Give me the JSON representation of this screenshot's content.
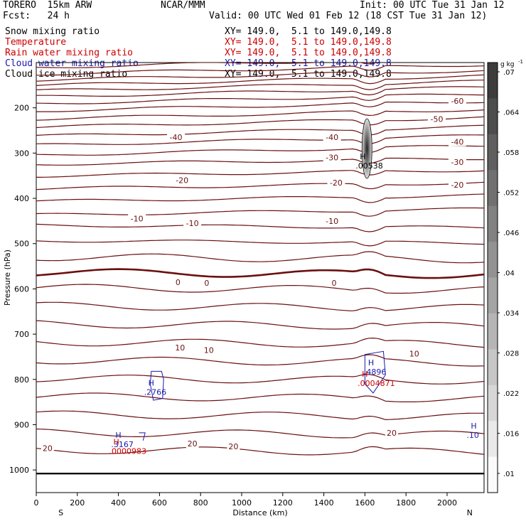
{
  "header": {
    "run": "TORERO  15km ARW",
    "center": "NCAR/MMM",
    "init": "Init: 00 UTC Tue 31 Jan 12",
    "fcst": "Fcst:   24 h",
    "valid": "Valid: 00 UTC Wed 01 Feb 12 (18 CST Tue 31 Jan 12)"
  },
  "fields": [
    {
      "name": "Snow mixing ratio",
      "xy": "XY= 149.0,  5.1 to 149.0,149.8",
      "color": "#000000"
    },
    {
      "name": "Temperature",
      "xy": "XY= 149.0,  5.1 to 149.0,149.8",
      "color": "#cc0000"
    },
    {
      "name": "Rain water mixing ratio",
      "xy": "XY= 149.0,  5.1 to 149.0,149.8",
      "color": "#cc0000"
    },
    {
      "name": "Cloud water mixing ratio",
      "xy": "XY= 149.0,  5.1 to 149.0,149.8",
      "color": "#1a1aaa"
    },
    {
      "name": "Cloud ice mixing ratio",
      "xy": "XY= 149.0,  5.1 to 149.0,149.8",
      "color": "#000000"
    }
  ],
  "chart_data": {
    "type": "cross-section contour",
    "xlabel": "Distance (km)",
    "ylabel": "Pressure (hPa)",
    "xlim": [
      0,
      2180
    ],
    "ylim": [
      1050,
      100
    ],
    "x_ticks": [
      0,
      200,
      400,
      600,
      800,
      1000,
      1200,
      1400,
      1600,
      1800,
      2000
    ],
    "y_ticks": [
      200,
      300,
      400,
      500,
      600,
      700,
      800,
      900,
      1000
    ],
    "end_labels": {
      "left": "S",
      "right": "N"
    },
    "colorbar": {
      "unit": "g kg",
      "unit_exp": "-1",
      "ticks": [
        ".01",
        ".016",
        ".022",
        ".028",
        ".034",
        ".04",
        ".046",
        ".052",
        ".058",
        ".064",
        ".07"
      ]
    },
    "temperature_labels": [
      {
        "text": "-60",
        "x": 2050,
        "p": 185
      },
      {
        "text": "-50",
        "x": 1950,
        "p": 225
      },
      {
        "text": "-40",
        "x": 680,
        "p": 265
      },
      {
        "text": "-40",
        "x": 1440,
        "p": 265
      },
      {
        "text": "-40",
        "x": 2050,
        "p": 275
      },
      {
        "text": "-30",
        "x": 1440,
        "p": 310
      },
      {
        "text": "-30",
        "x": 2050,
        "p": 320
      },
      {
        "text": "-20",
        "x": 710,
        "p": 360
      },
      {
        "text": "-20",
        "x": 1460,
        "p": 365
      },
      {
        "text": "-20",
        "x": 2050,
        "p": 370
      },
      {
        "text": "-10",
        "x": 490,
        "p": 445
      },
      {
        "text": "-10",
        "x": 760,
        "p": 455
      },
      {
        "text": "-10",
        "x": 1440,
        "p": 450
      },
      {
        "text": "0",
        "x": 690,
        "p": 585
      },
      {
        "text": "0",
        "x": 830,
        "p": 587
      },
      {
        "text": "0",
        "x": 1450,
        "p": 587
      },
      {
        "text": "10",
        "x": 700,
        "p": 730
      },
      {
        "text": "10",
        "x": 840,
        "p": 735
      },
      {
        "text": "10",
        "x": 1840,
        "p": 743
      },
      {
        "text": "20",
        "x": 55,
        "p": 952
      },
      {
        "text": "20",
        "x": 760,
        "p": 942
      },
      {
        "text": "20",
        "x": 960,
        "p": 948
      },
      {
        "text": "20",
        "x": 1730,
        "p": 918
      }
    ],
    "maxima": [
      {
        "label": "H",
        "value": ".00538",
        "x": 1610,
        "p": 320,
        "color": "#000000"
      },
      {
        "label": "H",
        "value": ".4896",
        "x": 1650,
        "p": 775,
        "color": "#1a1aaa"
      },
      {
        "label": "H",
        "value": ".0004871",
        "x": 1620,
        "p": 800,
        "color": "#cc0000"
      },
      {
        "label": "H",
        "value": ".2766",
        "x": 580,
        "p": 820,
        "color": "#1a1aaa"
      },
      {
        "label": "H",
        "value": ".3167",
        "x": 420,
        "p": 935,
        "color": "#1a1aaa"
      },
      {
        "label": "H",
        "value": ".0000983",
        "x": 410,
        "p": 950,
        "color": "#cc0000"
      },
      {
        "label": "H",
        "value": ".10",
        "x": 2150,
        "p": 915,
        "color": "#1a1aaa"
      }
    ]
  }
}
